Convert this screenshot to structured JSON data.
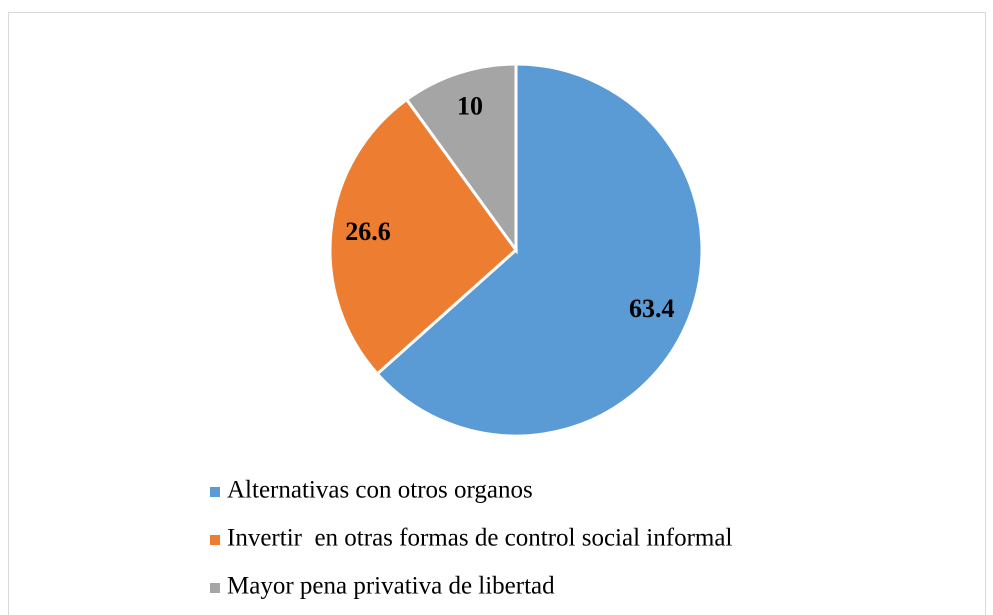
{
  "chart_data": {
    "type": "pie",
    "categories": [
      "Alternativas con otros organos",
      "Invertir  en otras formas de control social informal",
      "Mayor pena privativa de libertad"
    ],
    "values": [
      63.4,
      26.6,
      10
    ],
    "colors": [
      "#5b9bd5",
      "#ed7d31",
      "#a5a5a5"
    ],
    "legend": "bottom"
  }
}
